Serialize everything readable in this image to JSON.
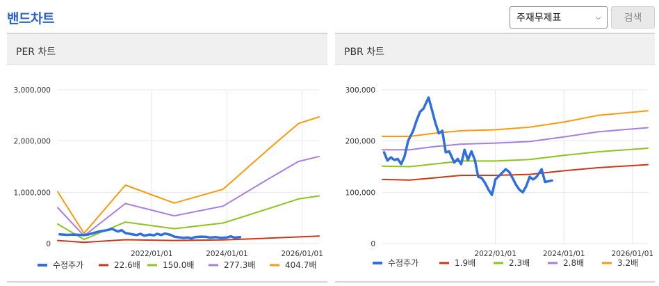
{
  "page": {
    "title": "밴드차트"
  },
  "controls": {
    "select_value": "주재무제표",
    "search_label": "검색"
  },
  "colors": {
    "price": "#2e6fdd",
    "band1": "#c8391a",
    "band2": "#8bc51e",
    "band3": "#a67ee0",
    "band4": "#f89a0c",
    "grid": "#e6e6e6"
  },
  "per": {
    "header": "PER 차트"
  },
  "pbr": {
    "header": "PBR 차트"
  },
  "chart_data": [
    {
      "id": "per",
      "type": "line",
      "title": "PER 차트",
      "xlim": [
        2019.5,
        2026.45
      ],
      "ylim": [
        0,
        3000000
      ],
      "x_ticks": [
        {
          "x": 2022.0,
          "label": "2022/01/01"
        },
        {
          "x": 2024.0,
          "label": "2024/01/01"
        },
        {
          "x": 2026.0,
          "label": "2026/01/01"
        }
      ],
      "y_ticks": [
        {
          "y": 0,
          "label": "0"
        },
        {
          "y": 1000000,
          "label": "1,000,000"
        },
        {
          "y": 2000000,
          "label": "2,000,000"
        },
        {
          "y": 3000000,
          "label": "3,000,000"
        }
      ],
      "series": [
        {
          "name": "수정주가",
          "color_key": "price",
          "width": 3.5,
          "points": [
            [
              2019.55,
              180000
            ],
            [
              2019.75,
              170000
            ],
            [
              2019.95,
              175000
            ],
            [
              2020.15,
              165000
            ],
            [
              2020.3,
              175000
            ],
            [
              2020.45,
              205000
            ],
            [
              2020.6,
              235000
            ],
            [
              2020.8,
              260000
            ],
            [
              2020.95,
              285000
            ],
            [
              2021.1,
              235000
            ],
            [
              2021.2,
              260000
            ],
            [
              2021.3,
              205000
            ],
            [
              2021.45,
              185000
            ],
            [
              2021.6,
              165000
            ],
            [
              2021.7,
              190000
            ],
            [
              2021.8,
              155000
            ],
            [
              2021.95,
              175000
            ],
            [
              2022.05,
              160000
            ],
            [
              2022.15,
              190000
            ],
            [
              2022.25,
              165000
            ],
            [
              2022.35,
              195000
            ],
            [
              2022.5,
              170000
            ],
            [
              2022.6,
              135000
            ],
            [
              2022.75,
              120000
            ],
            [
              2022.85,
              110000
            ],
            [
              2022.95,
              120000
            ],
            [
              2023.05,
              100000
            ],
            [
              2023.15,
              125000
            ],
            [
              2023.3,
              135000
            ],
            [
              2023.45,
              130000
            ],
            [
              2023.55,
              115000
            ],
            [
              2023.7,
              125000
            ],
            [
              2023.85,
              110000
            ],
            [
              2024.0,
              120000
            ],
            [
              2024.1,
              140000
            ],
            [
              2024.2,
              115000
            ],
            [
              2024.35,
              125000
            ]
          ]
        },
        {
          "name": "22.6배",
          "color_key": "band1",
          "width": 2,
          "points": [
            [
              2019.5,
              60000
            ],
            [
              2020.2,
              25000
            ],
            [
              2021.3,
              75000
            ],
            [
              2022.6,
              60000
            ],
            [
              2023.9,
              70000
            ],
            [
              2025.1,
              105000
            ],
            [
              2026.45,
              145000
            ]
          ]
        },
        {
          "name": "150.0배",
          "color_key": "band2",
          "width": 2,
          "points": [
            [
              2019.5,
              380000
            ],
            [
              2020.2,
              80000
            ],
            [
              2021.3,
              420000
            ],
            [
              2022.6,
              290000
            ],
            [
              2023.9,
              400000
            ],
            [
              2025.1,
              680000
            ],
            [
              2025.9,
              870000
            ],
            [
              2026.45,
              930000
            ]
          ]
        },
        {
          "name": "277.3배",
          "color_key": "band3",
          "width": 2,
          "points": [
            [
              2019.5,
              700000
            ],
            [
              2020.2,
              150000
            ],
            [
              2021.3,
              780000
            ],
            [
              2022.6,
              540000
            ],
            [
              2023.9,
              730000
            ],
            [
              2025.1,
              1260000
            ],
            [
              2025.9,
              1600000
            ],
            [
              2026.45,
              1700000
            ]
          ]
        },
        {
          "name": "404.7배",
          "color_key": "band4",
          "width": 2,
          "points": [
            [
              2019.5,
              1010000
            ],
            [
              2020.2,
              200000
            ],
            [
              2021.3,
              1140000
            ],
            [
              2022.6,
              790000
            ],
            [
              2023.9,
              1060000
            ],
            [
              2025.1,
              1840000
            ],
            [
              2025.9,
              2340000
            ],
            [
              2026.45,
              2470000
            ]
          ]
        }
      ]
    },
    {
      "id": "pbr",
      "type": "line",
      "title": "PBR 차트",
      "xlim": [
        2018.7,
        2026.45
      ],
      "ylim": [
        0,
        300000
      ],
      "x_ticks": [
        {
          "x": 2022.0,
          "label": "2022/01/01"
        },
        {
          "x": 2024.0,
          "label": "2024/01/01"
        },
        {
          "x": 2026.0,
          "label": "2026/01/01"
        }
      ],
      "y_ticks": [
        {
          "y": 0,
          "label": "0"
        },
        {
          "y": 100000,
          "label": "100,000"
        },
        {
          "y": 200000,
          "label": "200,000"
        },
        {
          "y": 300000,
          "label": "300,000"
        }
      ],
      "series": [
        {
          "name": "수정주가",
          "color_key": "price",
          "width": 3.5,
          "points": [
            [
              2018.75,
              178000
            ],
            [
              2018.85,
              162000
            ],
            [
              2018.95,
              168000
            ],
            [
              2019.05,
              163000
            ],
            [
              2019.15,
              165000
            ],
            [
              2019.25,
              155000
            ],
            [
              2019.35,
              170000
            ],
            [
              2019.45,
              200000
            ],
            [
              2019.6,
              220000
            ],
            [
              2019.7,
              240000
            ],
            [
              2019.8,
              257000
            ],
            [
              2019.9,
              263000
            ],
            [
              2020.05,
              285000
            ],
            [
              2020.15,
              260000
            ],
            [
              2020.25,
              235000
            ],
            [
              2020.35,
              215000
            ],
            [
              2020.45,
              220000
            ],
            [
              2020.55,
              178000
            ],
            [
              2020.65,
              180000
            ],
            [
              2020.8,
              158000
            ],
            [
              2020.9,
              165000
            ],
            [
              2021.0,
              155000
            ],
            [
              2021.1,
              183000
            ],
            [
              2021.2,
              163000
            ],
            [
              2021.3,
              180000
            ],
            [
              2021.4,
              163000
            ],
            [
              2021.5,
              130000
            ],
            [
              2021.6,
              128000
            ],
            [
              2021.7,
              118000
            ],
            [
              2021.8,
              105000
            ],
            [
              2021.9,
              95000
            ],
            [
              2022.0,
              125000
            ],
            [
              2022.15,
              135000
            ],
            [
              2022.3,
              145000
            ],
            [
              2022.4,
              140000
            ],
            [
              2022.5,
              128000
            ],
            [
              2022.6,
              115000
            ],
            [
              2022.7,
              105000
            ],
            [
              2022.8,
              100000
            ],
            [
              2022.9,
              112000
            ],
            [
              2023.0,
              130000
            ],
            [
              2023.1,
              125000
            ],
            [
              2023.2,
              130000
            ],
            [
              2023.35,
              145000
            ],
            [
              2023.45,
              120000
            ],
            [
              2023.65,
              123000
            ]
          ]
        },
        {
          "name": "1.9배",
          "color_key": "band1",
          "width": 2,
          "points": [
            [
              2018.7,
              125000
            ],
            [
              2019.5,
              124000
            ],
            [
              2020.2,
              128000
            ],
            [
              2021.0,
              133000
            ],
            [
              2022.0,
              133000
            ],
            [
              2023.0,
              135000
            ],
            [
              2024.0,
              142000
            ],
            [
              2025.0,
              148000
            ],
            [
              2026.45,
              154000
            ]
          ]
        },
        {
          "name": "2.3배",
          "color_key": "band2",
          "width": 2,
          "points": [
            [
              2018.7,
              151000
            ],
            [
              2019.5,
              150000
            ],
            [
              2020.2,
              155000
            ],
            [
              2021.0,
              161000
            ],
            [
              2022.0,
              161000
            ],
            [
              2023.0,
              164000
            ],
            [
              2024.0,
              172000
            ],
            [
              2025.0,
              179000
            ],
            [
              2026.45,
              186000
            ]
          ]
        },
        {
          "name": "2.8배",
          "color_key": "band3",
          "width": 2,
          "points": [
            [
              2018.7,
              183000
            ],
            [
              2019.5,
              183000
            ],
            [
              2020.2,
              189000
            ],
            [
              2021.0,
              194000
            ],
            [
              2022.0,
              196000
            ],
            [
              2023.0,
              199000
            ],
            [
              2024.0,
              208000
            ],
            [
              2025.0,
              218000
            ],
            [
              2026.45,
              226000
            ]
          ]
        },
        {
          "name": "3.2배",
          "color_key": "band4",
          "width": 2,
          "points": [
            [
              2018.7,
              209000
            ],
            [
              2019.5,
              209000
            ],
            [
              2020.2,
              215000
            ],
            [
              2021.0,
              220000
            ],
            [
              2022.0,
              222000
            ],
            [
              2023.0,
              227000
            ],
            [
              2024.0,
              237000
            ],
            [
              2025.0,
              250000
            ],
            [
              2026.45,
              259000
            ]
          ]
        }
      ]
    }
  ]
}
